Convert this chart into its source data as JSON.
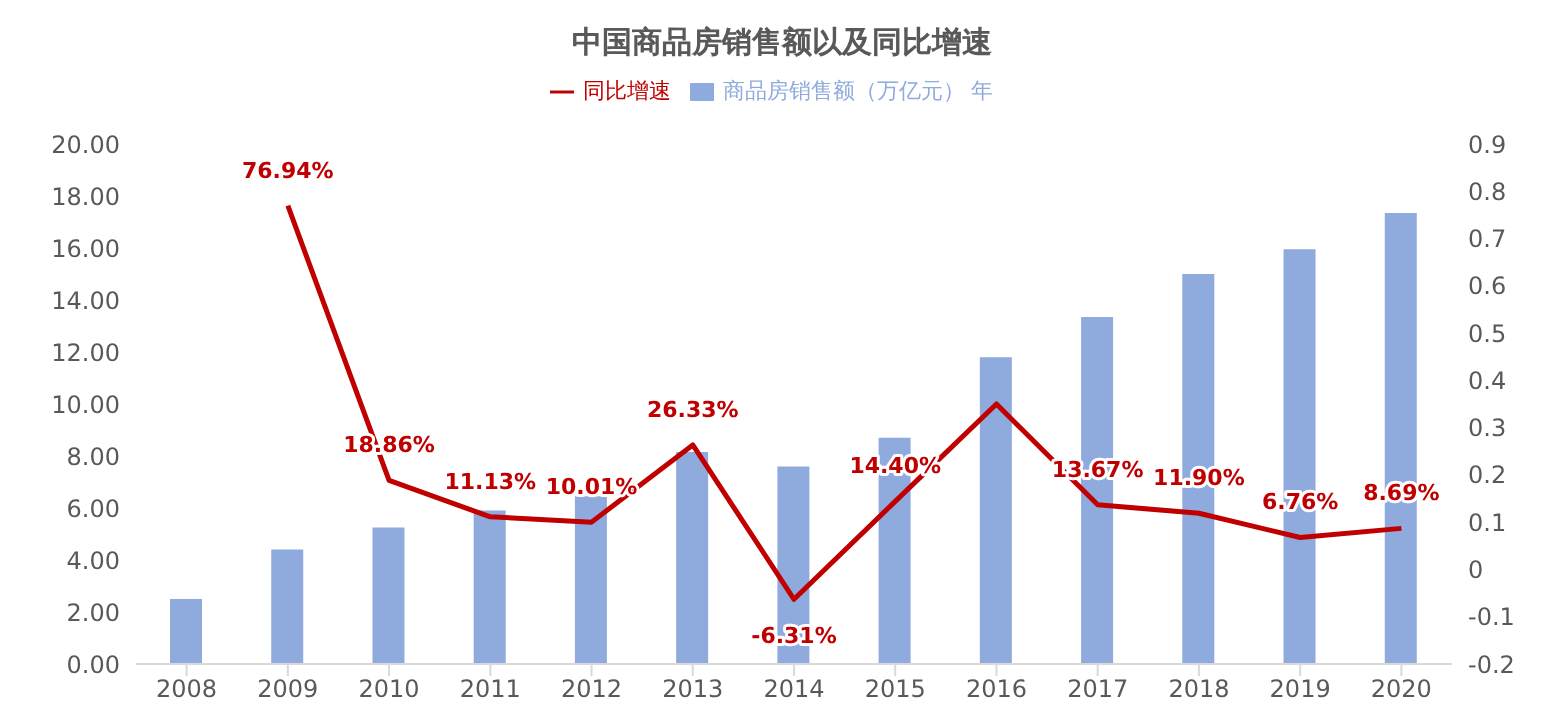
{
  "chart_data": {
    "type": "bar",
    "title": "中国商品房销售额以及同比增速",
    "categories": [
      "2008",
      "2009",
      "2010",
      "2011",
      "2012",
      "2013",
      "2014",
      "2015",
      "2016",
      "2017",
      "2018",
      "2019",
      "2020"
    ],
    "series": [
      {
        "name": "商品房销售额（万亿元） 年",
        "color": "#8faadc",
        "values": [
          2.5,
          4.4,
          5.25,
          5.9,
          6.45,
          8.15,
          7.6,
          8.7,
          11.8,
          13.35,
          15.0,
          15.95,
          17.35
        ]
      },
      {
        "name": "同比增速",
        "type": "line",
        "axis": "y2",
        "color": "#c00000",
        "values": [
          null,
          0.7694,
          0.1886,
          0.1113,
          0.1001,
          0.2633,
          -0.0631,
          0.144,
          0.35,
          0.1367,
          0.119,
          0.0676,
          0.0869
        ],
        "value_labels": [
          null,
          "76.94%",
          "18.86%",
          "11.13%",
          "10.01%",
          "26.33%",
          "-6.31%",
          "14.40%",
          null,
          "13.67%",
          "11.90%",
          "6.76%",
          "8.69%"
        ]
      }
    ],
    "ylim": [
      0,
      20
    ],
    "yticks": [
      {
        "value": 0,
        "label": "0.00"
      },
      {
        "value": 2,
        "label": "2.00"
      },
      {
        "value": 4,
        "label": "4.00"
      },
      {
        "value": 6,
        "label": "6.00"
      },
      {
        "value": 8,
        "label": "8.00"
      },
      {
        "value": 10,
        "label": "10.00"
      },
      {
        "value": 12,
        "label": "12.00"
      },
      {
        "value": 14,
        "label": "14.00"
      },
      {
        "value": 16,
        "label": "16.00"
      },
      {
        "value": 18,
        "label": "18.00"
      },
      {
        "value": 20,
        "label": "20.00"
      }
    ],
    "y2lim": [
      -0.2,
      0.9
    ],
    "y2ticks": [
      -0.2,
      -0.1,
      0,
      0.1,
      0.2,
      0.3,
      0.4,
      0.5,
      0.6,
      0.7,
      0.8,
      0.9
    ],
    "legend": "top",
    "grid": false,
    "marker": "none",
    "line_style": "solid"
  }
}
